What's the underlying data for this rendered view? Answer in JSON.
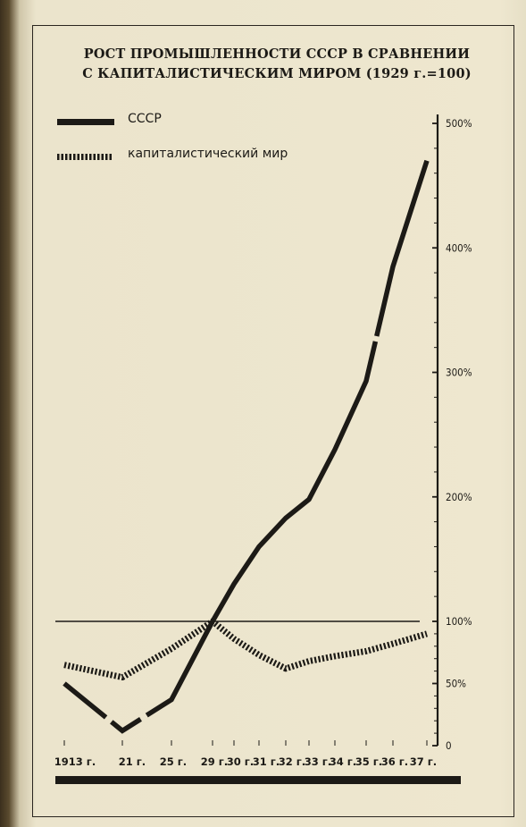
{
  "chart_data": {
    "type": "line",
    "title": "РОСТ ПРОМЫШЛЕННОСТИ СССР В СРАВНЕНИИ",
    "subtitle": "С КАПИТАЛИСТИЧЕСКИМ МИРОМ (1929 г.=100)",
    "x_tick_labels": [
      "1913 г.",
      "21 г.",
      "25 г.",
      "29 г.",
      "30 г.",
      "31 г.",
      "32 г.",
      "33 г.",
      "34 г.",
      "35 г.",
      "36 г.",
      "37 г."
    ],
    "y_tick_labels": [
      "0",
      "50%",
      "100%",
      "200%",
      "300%",
      "400%",
      "500%"
    ],
    "y_ticks": [
      0,
      50,
      100,
      200,
      300,
      400,
      500
    ],
    "ylim": [
      0,
      500
    ],
    "reference_line": 100,
    "series": [
      {
        "name": "СССР",
        "style": "solid",
        "color": "#1c1a16",
        "points": [
          {
            "x": 1913,
            "y": 50
          },
          {
            "x": 1921,
            "y": 12
          },
          {
            "x": 1925,
            "y": 37
          },
          {
            "x": 1929,
            "y": 100
          },
          {
            "x": 1930,
            "y": 130
          },
          {
            "x": 1931,
            "y": 160
          },
          {
            "x": 1932,
            "y": 183
          },
          {
            "x": 1933,
            "y": 198
          },
          {
            "x": 1934,
            "y": 238
          },
          {
            "x": 1935,
            "y": 293
          },
          {
            "x": 1936,
            "y": 385
          },
          {
            "x": 1937,
            "y": 470
          }
        ]
      },
      {
        "name": "капиталистический мир",
        "style": "hatched",
        "color": "#1c1a16",
        "points": [
          {
            "x": 1913,
            "y": 65
          },
          {
            "x": 1921,
            "y": 55
          },
          {
            "x": 1925,
            "y": 78
          },
          {
            "x": 1929,
            "y": 100
          },
          {
            "x": 1930,
            "y": 86
          },
          {
            "x": 1931,
            "y": 73
          },
          {
            "x": 1932,
            "y": 62
          },
          {
            "x": 1933,
            "y": 68
          },
          {
            "x": 1934,
            "y": 72
          },
          {
            "x": 1935,
            "y": 76
          },
          {
            "x": 1936,
            "y": 82
          },
          {
            "x": 1937,
            "y": 90
          }
        ]
      }
    ],
    "legend_position": "top-left",
    "grid": false
  }
}
